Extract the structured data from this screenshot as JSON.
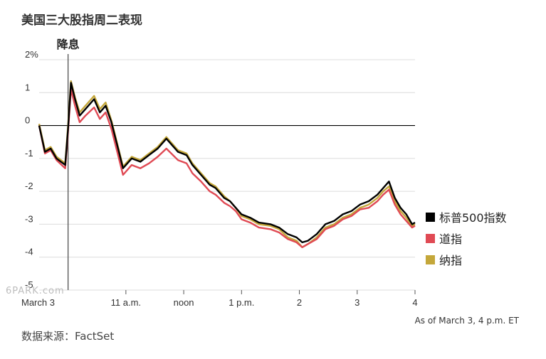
{
  "title": "美国三大股指周二表现",
  "source": "数据来源：FactSet",
  "as_of": "As of March 3, 4 p.m. ET",
  "annotation": "降息",
  "watermark": "6PARK.com",
  "chart_data": {
    "type": "line",
    "title": "美国三大股指周二表现",
    "ylim": [
      -5,
      2
    ],
    "y_ticks": [
      2,
      1,
      0,
      -1,
      -2,
      -3,
      -4,
      -5
    ],
    "y_tick_labels": [
      "2%",
      "1",
      "0",
      "-1",
      "-2",
      "-3",
      "-4",
      "-5"
    ],
    "xlim": [
      9.5,
      16
    ],
    "x_ticks": [
      9.5,
      11,
      12,
      13,
      14,
      15,
      16
    ],
    "x_tick_labels": [
      "March 3",
      "11 a.m.",
      "noon",
      "1 p.m.",
      "2",
      "3",
      "4"
    ],
    "event": {
      "x": 10.0,
      "label": "降息"
    },
    "series": [
      {
        "name": "标普500指数",
        "color": "#000000",
        "x": [
          9.5,
          9.6,
          9.7,
          9.8,
          9.95,
          10.0,
          10.05,
          10.12,
          10.2,
          10.3,
          10.45,
          10.55,
          10.65,
          10.75,
          10.85,
          10.95,
          11.1,
          11.25,
          11.4,
          11.55,
          11.7,
          11.9,
          12.05,
          12.15,
          12.3,
          12.45,
          12.55,
          12.7,
          12.8,
          12.9,
          13.0,
          13.15,
          13.3,
          13.5,
          13.65,
          13.8,
          13.95,
          14.05,
          14.15,
          14.3,
          14.45,
          14.6,
          14.75,
          14.9,
          15.05,
          15.2,
          15.35,
          15.45,
          15.55,
          15.65,
          15.75,
          15.85,
          15.95,
          16.0
        ],
        "values": [
          0.0,
          -0.8,
          -0.7,
          -1.0,
          -1.2,
          -0.1,
          1.3,
          0.8,
          0.3,
          0.5,
          0.8,
          0.4,
          0.6,
          0.1,
          -0.6,
          -1.3,
          -1.0,
          -1.1,
          -0.9,
          -0.7,
          -0.4,
          -0.8,
          -0.9,
          -1.2,
          -1.5,
          -1.8,
          -1.9,
          -2.2,
          -2.3,
          -2.5,
          -2.7,
          -2.8,
          -2.95,
          -3.0,
          -3.1,
          -3.3,
          -3.4,
          -3.55,
          -3.5,
          -3.3,
          -3.0,
          -2.9,
          -2.7,
          -2.6,
          -2.4,
          -2.3,
          -2.1,
          -1.9,
          -1.7,
          -2.2,
          -2.5,
          -2.7,
          -3.0,
          -2.95
        ]
      },
      {
        "name": "道指",
        "color": "#e04a54",
        "x": [
          9.5,
          9.6,
          9.7,
          9.8,
          9.95,
          10.0,
          10.05,
          10.12,
          10.2,
          10.3,
          10.45,
          10.55,
          10.65,
          10.75,
          10.85,
          10.95,
          11.1,
          11.25,
          11.4,
          11.55,
          11.7,
          11.9,
          12.05,
          12.15,
          12.3,
          12.45,
          12.55,
          12.7,
          12.8,
          12.9,
          13.0,
          13.15,
          13.3,
          13.5,
          13.65,
          13.8,
          13.95,
          14.05,
          14.15,
          14.3,
          14.45,
          14.6,
          14.75,
          14.9,
          15.05,
          15.2,
          15.35,
          15.45,
          15.55,
          15.65,
          15.75,
          15.85,
          15.95,
          16.0
        ],
        "values": [
          0.0,
          -0.85,
          -0.75,
          -1.05,
          -1.3,
          -0.2,
          1.1,
          0.6,
          0.1,
          0.3,
          0.55,
          0.2,
          0.4,
          -0.1,
          -0.8,
          -1.5,
          -1.2,
          -1.3,
          -1.15,
          -0.95,
          -0.7,
          -1.05,
          -1.15,
          -1.45,
          -1.7,
          -2.0,
          -2.1,
          -2.35,
          -2.45,
          -2.6,
          -2.85,
          -2.95,
          -3.1,
          -3.15,
          -3.25,
          -3.45,
          -3.55,
          -3.7,
          -3.6,
          -3.45,
          -3.15,
          -3.05,
          -2.85,
          -2.75,
          -2.55,
          -2.5,
          -2.3,
          -2.1,
          -1.95,
          -2.4,
          -2.7,
          -2.9,
          -3.1,
          -3.05
        ]
      },
      {
        "name": "纳指",
        "color": "#c4a73a",
        "x": [
          9.5,
          9.6,
          9.7,
          9.8,
          9.95,
          10.0,
          10.05,
          10.12,
          10.2,
          10.3,
          10.45,
          10.55,
          10.65,
          10.75,
          10.85,
          10.95,
          11.1,
          11.25,
          11.4,
          11.55,
          11.7,
          11.9,
          12.05,
          12.15,
          12.3,
          12.45,
          12.55,
          12.7,
          12.8,
          12.9,
          13.0,
          13.15,
          13.3,
          13.5,
          13.65,
          13.8,
          13.95,
          14.05,
          14.15,
          14.3,
          14.45,
          14.6,
          14.75,
          14.9,
          15.05,
          15.2,
          15.35,
          15.45,
          15.55,
          15.65,
          15.75,
          15.85,
          15.95,
          16.0
        ],
        "values": [
          0.05,
          -0.75,
          -0.65,
          -0.95,
          -1.15,
          0.0,
          1.35,
          0.85,
          0.4,
          0.6,
          0.9,
          0.5,
          0.7,
          0.15,
          -0.55,
          -1.25,
          -0.95,
          -1.05,
          -0.85,
          -0.65,
          -0.35,
          -0.75,
          -0.85,
          -1.15,
          -1.45,
          -1.75,
          -1.85,
          -2.15,
          -2.3,
          -2.5,
          -2.75,
          -2.85,
          -3.0,
          -3.05,
          -3.15,
          -3.4,
          -3.5,
          -3.7,
          -3.6,
          -3.4,
          -3.1,
          -3.0,
          -2.8,
          -2.7,
          -2.5,
          -2.4,
          -2.2,
          -2.0,
          -1.85,
          -2.3,
          -2.6,
          -2.8,
          -3.05,
          -3.0
        ]
      }
    ]
  }
}
